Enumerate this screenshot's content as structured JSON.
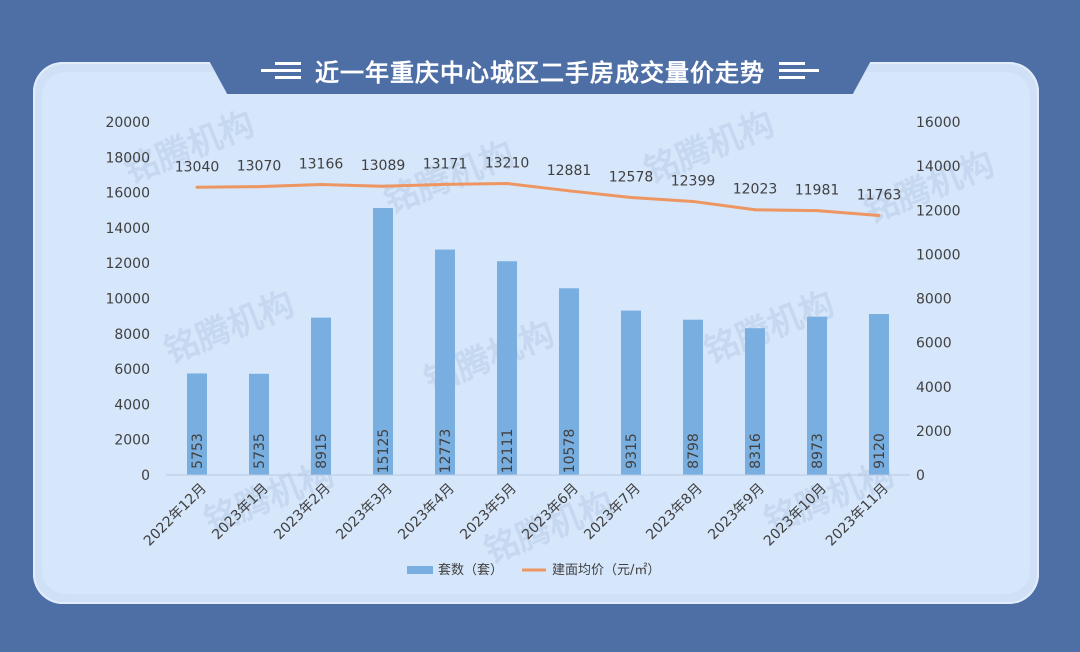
{
  "page": {
    "title": "近一年重庆中心城区二手房成交量价走势",
    "watermark": "铭腾机构"
  },
  "colors": {
    "background": "#4e6fa6",
    "panel": "#d6e6fb",
    "bar": "#79aee0",
    "line": "#ed9662",
    "text": "#404040"
  },
  "chart_data": {
    "type": "bar",
    "categories": [
      "2022年12月",
      "2023年1月",
      "2023年2月",
      "2023年3月",
      "2023年4月",
      "2023年5月",
      "2023年6月",
      "2023年7月",
      "2023年8月",
      "2023年9月",
      "2023年10月",
      "2023年11月"
    ],
    "series": [
      {
        "name": "套数（套）",
        "type": "bar",
        "axis": "left",
        "values": [
          5753,
          5735,
          8915,
          15125,
          12773,
          12111,
          10578,
          9315,
          8798,
          8316,
          8973,
          9120
        ]
      },
      {
        "name": "建面均价（元/㎡）",
        "type": "line",
        "axis": "right",
        "values": [
          13040,
          13070,
          13166,
          13089,
          13171,
          13210,
          12881,
          12578,
          12399,
          12023,
          11981,
          11763
        ]
      }
    ],
    "y_left": {
      "ticks": [
        "0",
        "2000",
        "4000",
        "6000",
        "8000",
        "10000",
        "12000",
        "14000",
        "16000",
        "18000",
        "20000"
      ],
      "lim": [
        0,
        20000
      ]
    },
    "y_right": {
      "ticks": [
        "0",
        "2000",
        "4000",
        "6000",
        "8000",
        "10000",
        "12000",
        "14000",
        "16000"
      ],
      "lim": [
        0,
        16000
      ]
    },
    "grid": false,
    "legend": "bottom"
  }
}
